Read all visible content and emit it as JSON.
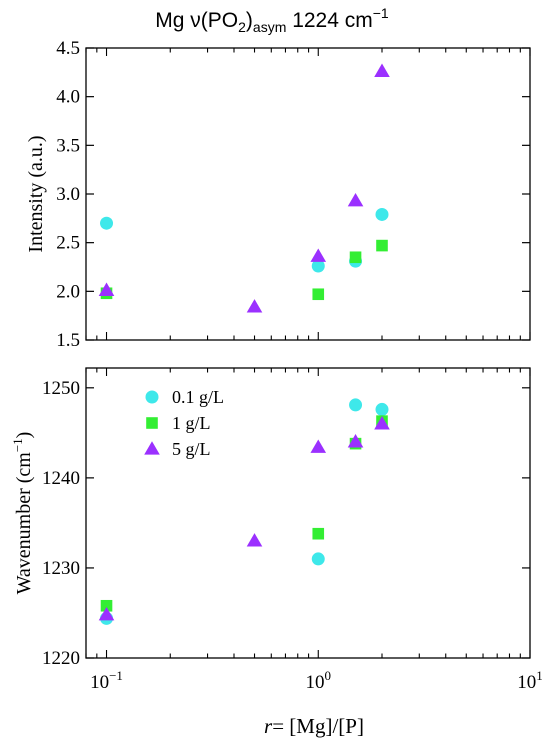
{
  "title": {
    "prefix": "Mg ν(PO",
    "sub1": "2",
    "mid": ")",
    "sub2": "asym",
    "value": " 1224 cm",
    "sup": "−1"
  },
  "xaxis": {
    "label_var": "r",
    "label_rest": "= [Mg]/[P]",
    "ticks": [
      {
        "value": 0.1,
        "base": "10",
        "exp": "−1"
      },
      {
        "value": 1,
        "base": "10",
        "exp": "0"
      },
      {
        "value": 10,
        "base": "10",
        "exp": "1"
      }
    ]
  },
  "top_ylabel": "Intensity (a.u.)",
  "bottom_ylabel": {
    "main": "Wavenumber (cm",
    "sup": "−1",
    "close": ")"
  },
  "legend": [
    {
      "label": "0.1 g/L",
      "marker": "circle",
      "color": "#3ee8ea"
    },
    {
      "label": "1 g/L",
      "marker": "square",
      "color": "#33ee33"
    },
    {
      "label": "5 g/L",
      "marker": "triangle",
      "color": "#9b30ff"
    }
  ],
  "chart_data": [
    {
      "type": "scatter",
      "x_scale": "log",
      "xlim": [
        0.08,
        10
      ],
      "ylim": [
        1.5,
        4.5
      ],
      "ylabel": "Intensity (a.u.)",
      "yticks": [
        "1.5",
        "2.0",
        "2.5",
        "3.0",
        "3.5",
        "4.0",
        "4.5"
      ],
      "series": [
        {
          "name": "0.1 g/L",
          "color": "#3ee8ea",
          "marker": "circle",
          "x": [
            0.1,
            1.0,
            1.5,
            2.0
          ],
          "y": [
            2.7,
            2.26,
            2.31,
            2.79
          ]
        },
        {
          "name": "1 g/L",
          "color": "#33ee33",
          "marker": "square",
          "x": [
            0.1,
            1.0,
            1.5,
            2.0
          ],
          "y": [
            1.98,
            1.97,
            2.35,
            2.47
          ]
        },
        {
          "name": "5 g/L",
          "color": "#9b30ff",
          "marker": "triangle",
          "x": [
            0.1,
            0.5,
            1.0,
            1.5,
            2.0
          ],
          "y": [
            2.01,
            1.84,
            2.36,
            2.93,
            4.26
          ]
        }
      ]
    },
    {
      "type": "scatter",
      "x_scale": "log",
      "xlim": [
        0.08,
        10
      ],
      "ylim": [
        1220,
        1252.2
      ],
      "ylabel": "Wavenumber (cm−1)",
      "yticks": [
        "1220",
        "1230",
        "1240",
        "1250"
      ],
      "series": [
        {
          "name": "0.1 g/L",
          "color": "#3ee8ea",
          "marker": "circle",
          "x": [
            0.1,
            1.0,
            1.5,
            2.0
          ],
          "y": [
            1224.4,
            1231.0,
            1248.1,
            1247.6
          ]
        },
        {
          "name": "1 g/L",
          "color": "#33ee33",
          "marker": "square",
          "x": [
            0.1,
            1.0,
            1.5,
            2.0
          ],
          "y": [
            1225.8,
            1233.8,
            1243.8,
            1246.3
          ]
        },
        {
          "name": "5 g/L",
          "color": "#9b30ff",
          "marker": "triangle",
          "x": [
            0.1,
            0.5,
            1.0,
            1.5,
            2.0
          ],
          "y": [
            1224.8,
            1233.0,
            1243.4,
            1244.0,
            1246.0
          ]
        }
      ]
    }
  ]
}
